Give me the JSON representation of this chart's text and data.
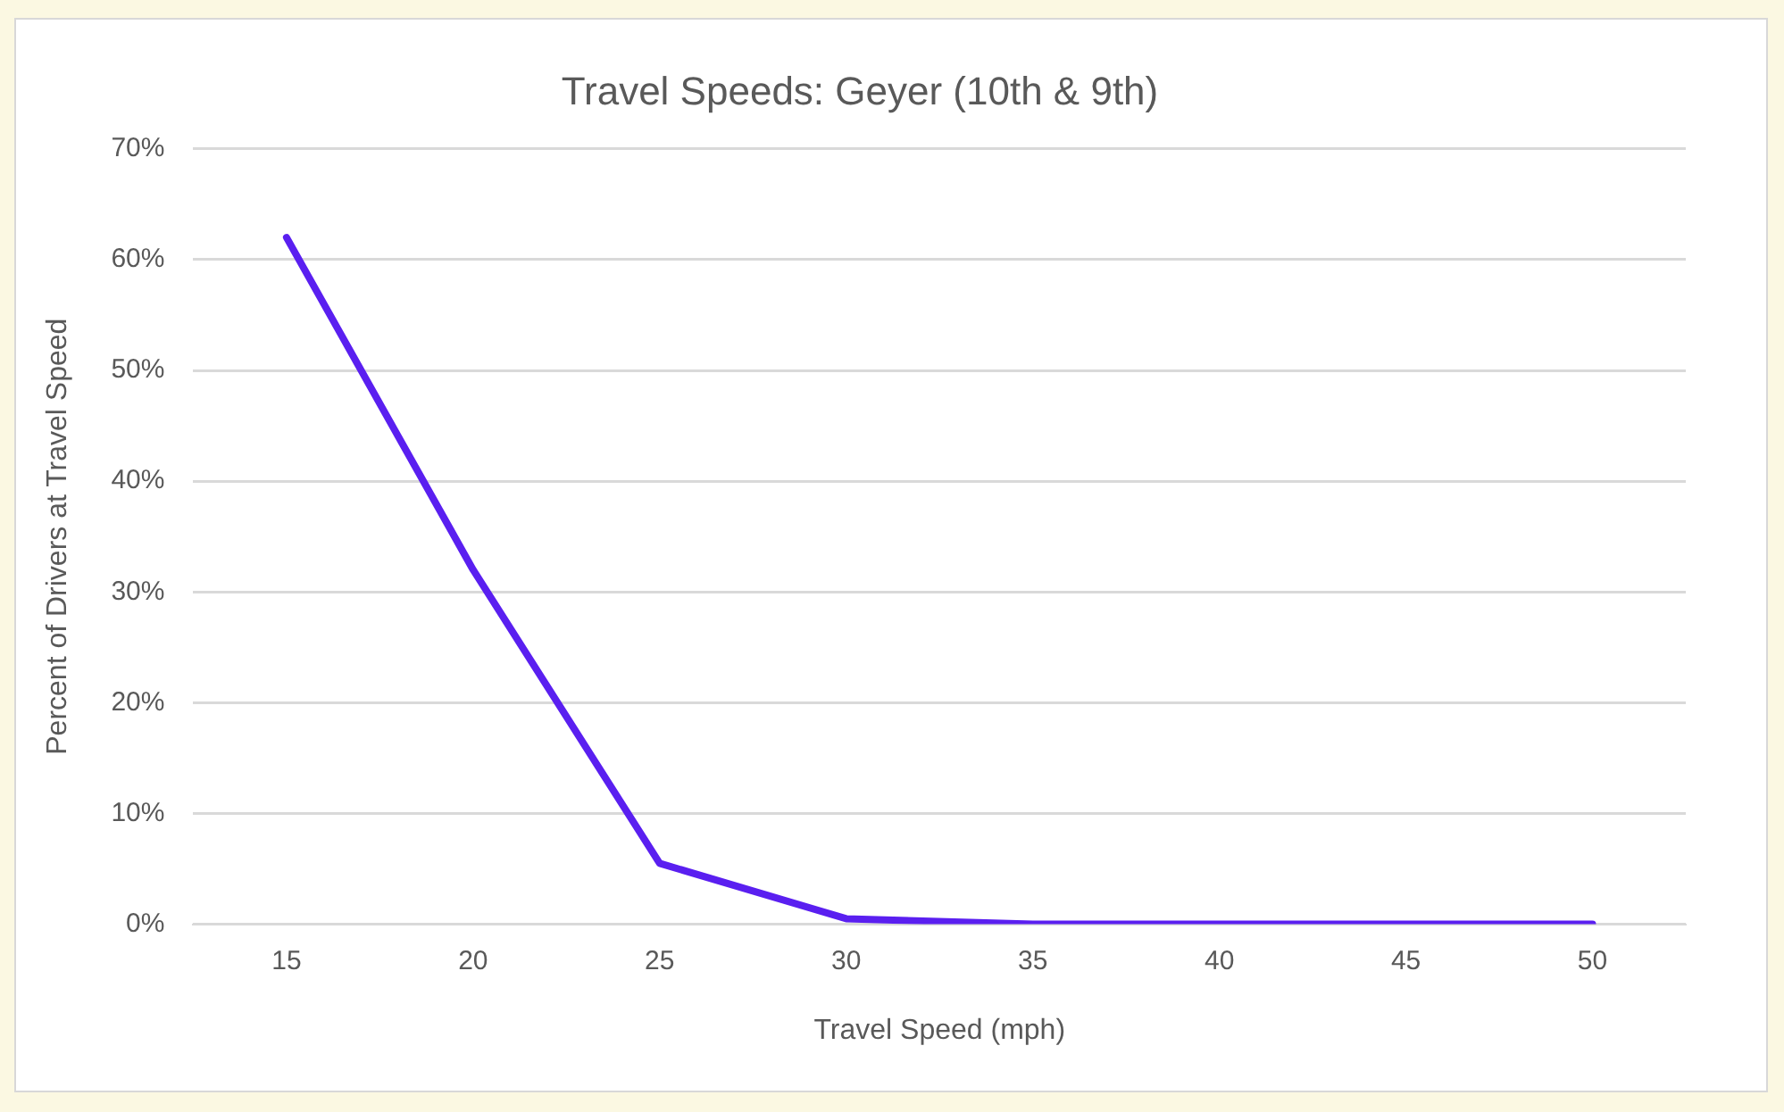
{
  "chart_data": {
    "type": "line",
    "title": "Travel Speeds: Geyer (10th & 9th)",
    "xlabel": "Travel Speed (mph)",
    "ylabel": "Percent of Drivers at Travel Speed",
    "categories": [
      "15",
      "20",
      "25",
      "30",
      "35",
      "40",
      "45",
      "50"
    ],
    "series": [
      {
        "color": "#5a1ff0",
        "values": [
          62,
          32,
          5.5,
          0.5,
          0,
          0,
          0,
          0
        ]
      }
    ],
    "ylim": [
      0,
      70
    ],
    "yticks": [
      {
        "value": 0,
        "label": "0%"
      },
      {
        "value": 10,
        "label": "10%"
      },
      {
        "value": 20,
        "label": "20%"
      },
      {
        "value": 30,
        "label": "30%"
      },
      {
        "value": 40,
        "label": "40%"
      },
      {
        "value": 50,
        "label": "50%"
      },
      {
        "value": 60,
        "label": "60%"
      },
      {
        "value": 70,
        "label": "70%"
      }
    ],
    "grid": "y",
    "legend": false,
    "marker": "none",
    "line_style": "solid"
  }
}
